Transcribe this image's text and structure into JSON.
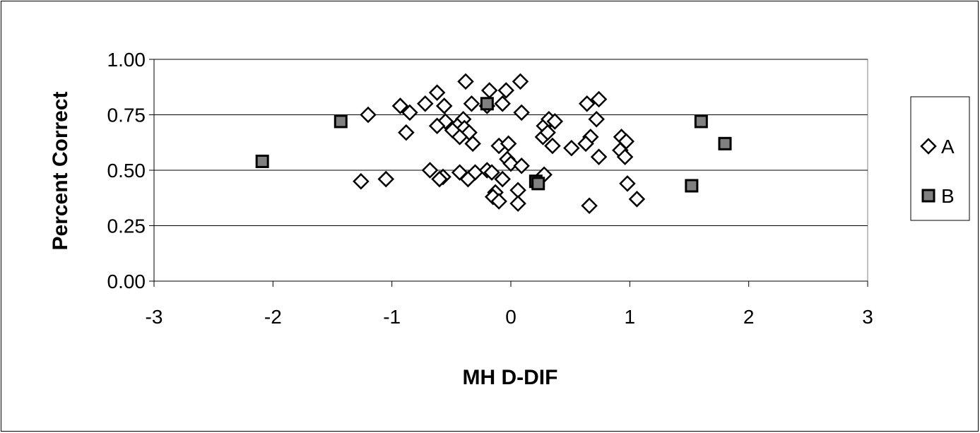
{
  "chart_data": {
    "type": "scatter",
    "title": "",
    "xlabel": "MH D-DIF",
    "ylabel": "Percent Correct",
    "xlim": [
      -3,
      3
    ],
    "ylim": [
      0,
      1
    ],
    "x_ticks": [
      "-3",
      "-2",
      "-1",
      "0",
      "1",
      "2",
      "3"
    ],
    "y_ticks": [
      "0.00",
      "0.25",
      "0.50",
      "0.75",
      "1.00"
    ],
    "grid": "horizontal",
    "legend_position": "right",
    "series": [
      {
        "name": "A",
        "marker": "diamond",
        "color": "#ffffff",
        "points": [
          [
            -0.38,
            0.9
          ],
          [
            0.08,
            0.9
          ],
          [
            -0.62,
            0.85
          ],
          [
            -0.18,
            0.86
          ],
          [
            -0.04,
            0.86
          ],
          [
            -0.93,
            0.79
          ],
          [
            -0.72,
            0.8
          ],
          [
            -0.56,
            0.79
          ],
          [
            -0.33,
            0.8
          ],
          [
            -0.2,
            0.79
          ],
          [
            -0.07,
            0.8
          ],
          [
            0.64,
            0.8
          ],
          [
            0.74,
            0.82
          ],
          [
            -1.2,
            0.75
          ],
          [
            -0.85,
            0.76
          ],
          [
            0.09,
            0.76
          ],
          [
            -0.4,
            0.73
          ],
          [
            -0.55,
            0.72
          ],
          [
            -0.62,
            0.7
          ],
          [
            -0.45,
            0.7
          ],
          [
            -0.39,
            0.69
          ],
          [
            -0.35,
            0.67
          ],
          [
            -0.49,
            0.68
          ],
          [
            -0.43,
            0.65
          ],
          [
            0.28,
            0.7
          ],
          [
            0.32,
            0.73
          ],
          [
            0.37,
            0.72
          ],
          [
            0.72,
            0.73
          ],
          [
            0.27,
            0.65
          ],
          [
            0.31,
            0.67
          ],
          [
            0.67,
            0.65
          ],
          [
            0.93,
            0.65
          ],
          [
            0.97,
            0.63
          ],
          [
            -0.88,
            0.67
          ],
          [
            -0.32,
            0.62
          ],
          [
            0.63,
            0.62
          ],
          [
            0.35,
            0.61
          ],
          [
            0.51,
            0.6
          ],
          [
            0.92,
            0.59
          ],
          [
            -0.1,
            0.61
          ],
          [
            -0.02,
            0.62
          ],
          [
            0.74,
            0.56
          ],
          [
            0.96,
            0.56
          ],
          [
            -0.03,
            0.55
          ],
          [
            -0.68,
            0.5
          ],
          [
            -0.43,
            0.49
          ],
          [
            -0.3,
            0.49
          ],
          [
            -0.2,
            0.5
          ],
          [
            -0.16,
            0.49
          ],
          [
            0.28,
            0.48
          ],
          [
            -0.57,
            0.47
          ],
          [
            -0.6,
            0.46
          ],
          [
            -0.36,
            0.46
          ],
          [
            -0.07,
            0.46
          ],
          [
            0.0,
            0.53
          ],
          [
            0.09,
            0.52
          ],
          [
            -1.26,
            0.45
          ],
          [
            -1.05,
            0.46
          ],
          [
            0.98,
            0.44
          ],
          [
            0.06,
            0.41
          ],
          [
            -0.13,
            0.4
          ],
          [
            -0.15,
            0.38
          ],
          [
            -0.1,
            0.36
          ],
          [
            0.06,
            0.35
          ],
          [
            1.06,
            0.37
          ],
          [
            0.66,
            0.34
          ]
        ]
      },
      {
        "name": "B",
        "marker": "square",
        "color": "#808080",
        "points": [
          [
            -2.09,
            0.54
          ],
          [
            -1.43,
            0.72
          ],
          [
            -0.2,
            0.8
          ],
          [
            0.21,
            0.45
          ],
          [
            0.23,
            0.44
          ],
          [
            1.52,
            0.43
          ],
          [
            1.6,
            0.72
          ],
          [
            1.8,
            0.62
          ]
        ]
      }
    ]
  }
}
